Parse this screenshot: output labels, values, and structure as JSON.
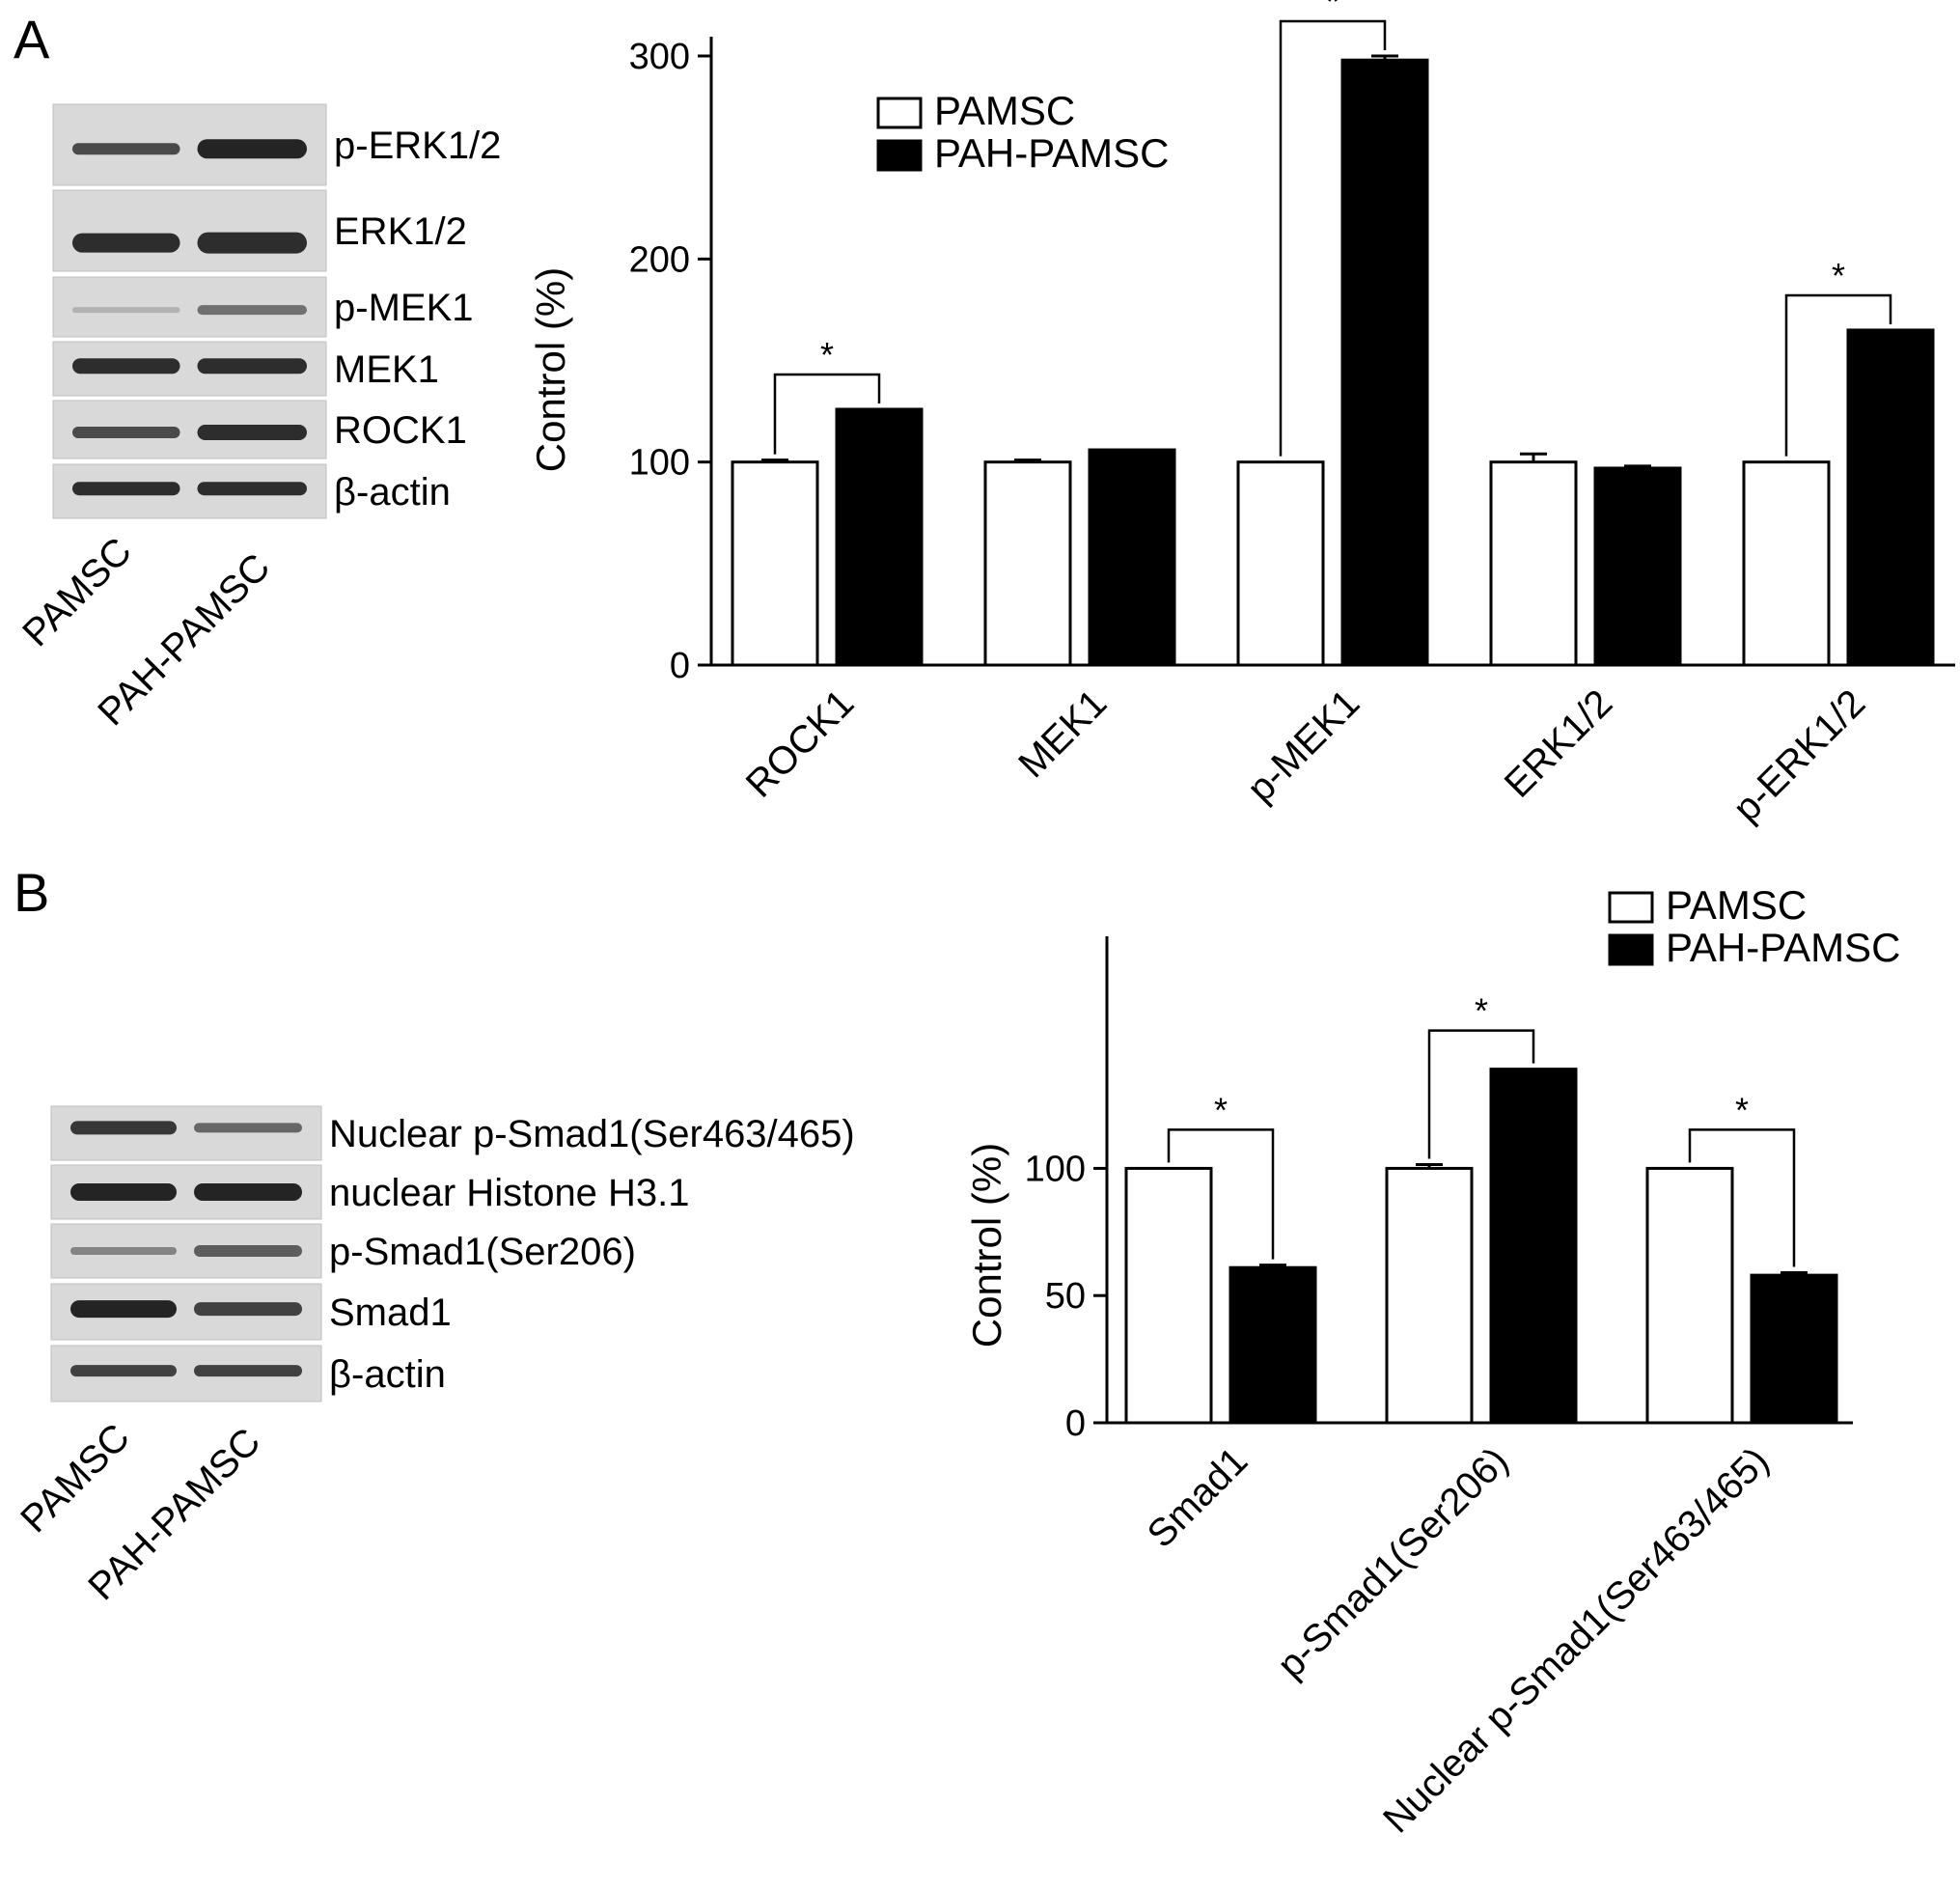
{
  "panel_a": {
    "letter": "A",
    "blot": {
      "rows": [
        "p-ERK1/2",
        "ERK1/2",
        "p-MEK1",
        "MEK1",
        "ROCK1",
        "β-actin"
      ],
      "lanes": [
        "PAMSC",
        "PAH-PAMSC"
      ]
    }
  },
  "panel_b": {
    "letter": "B",
    "blot": {
      "rows": [
        "Nuclear p-Smad1(Ser463/465)",
        "nuclear Histone H3.1",
        "p-Smad1(Ser206)",
        "Smad1",
        "β-actin"
      ],
      "lanes": [
        "PAMSC",
        "PAH-PAMSC"
      ]
    }
  },
  "colors": {
    "pamsc": "#ffffff",
    "pah_pamsc": "#000000",
    "blot_bg": "#d9d9d9",
    "band": "#1a1a1a"
  },
  "chart_data": [
    {
      "type": "bar",
      "categories": [
        "ROCK1",
        "MEK1",
        "p-MEK1",
        "ERK1/2",
        "p-ERK1/2"
      ],
      "series": [
        {
          "name": "PAMSC",
          "values": [
            100,
            100,
            100,
            100,
            100
          ],
          "errors": [
            1,
            1,
            0,
            4,
            0
          ]
        },
        {
          "name": "PAH-PAMSC",
          "values": [
            126,
            106,
            298,
            97,
            165
          ],
          "errors": [
            0,
            0,
            2,
            1,
            0
          ]
        }
      ],
      "ylabel": "Control (%)",
      "yticks": [
        0,
        100,
        200,
        300
      ],
      "ylim": [
        0,
        300
      ],
      "significance": [
        {
          "index": 0,
          "label": "*"
        },
        {
          "index": 2,
          "label": "*"
        },
        {
          "index": 4,
          "label": "*"
        }
      ],
      "legend": "top-left",
      "grid": false
    },
    {
      "type": "bar",
      "categories": [
        "Smad1",
        "p-Smad1(Ser206)",
        "Nuclear p-Smad1(Ser463/465)"
      ],
      "series": [
        {
          "name": "PAMSC",
          "values": [
            100,
            100,
            100
          ],
          "errors": [
            0,
            1.5,
            0
          ]
        },
        {
          "name": "PAH-PAMSC",
          "values": [
            61,
            139,
            58
          ],
          "errors": [
            1,
            0,
            1
          ]
        }
      ],
      "ylabel": "Control (%)",
      "yticks": [
        0,
        50,
        100
      ],
      "ylim": [
        0,
        140
      ],
      "significance": [
        {
          "index": 0,
          "label": "*"
        },
        {
          "index": 1,
          "label": "*"
        },
        {
          "index": 2,
          "label": "*"
        }
      ],
      "legend": "top-right",
      "grid": false
    }
  ]
}
